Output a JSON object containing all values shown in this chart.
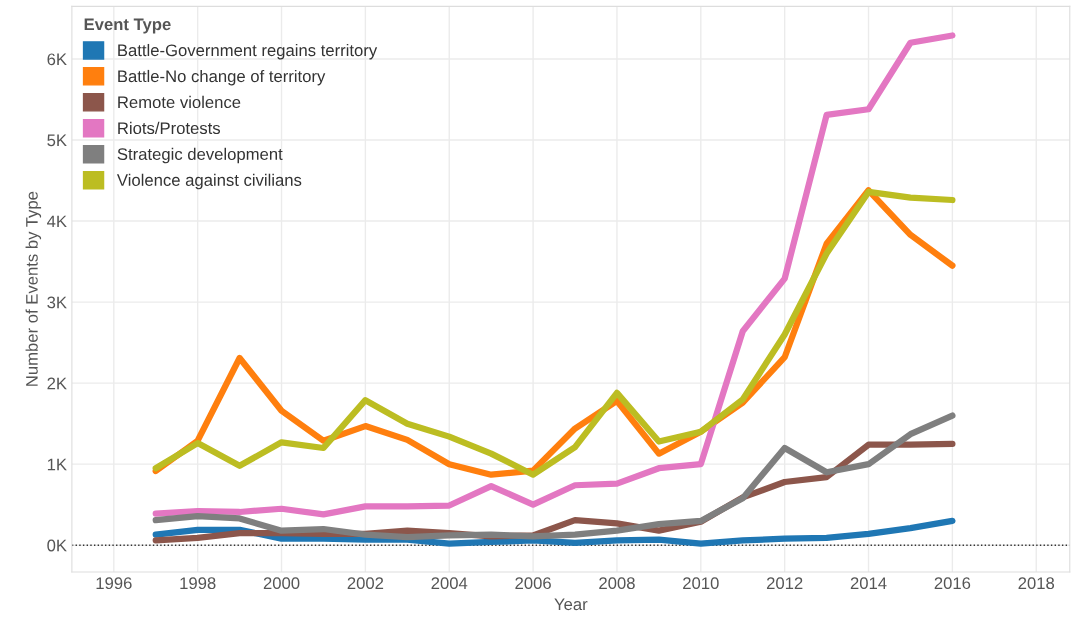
{
  "chart_data": {
    "type": "line",
    "xlabel": "Year",
    "ylabel": "Number of Events by Type",
    "legend_title": "Event Type",
    "x": [
      1997,
      1998,
      1999,
      2000,
      2001,
      2002,
      2003,
      2004,
      2005,
      2006,
      2007,
      2008,
      2009,
      2010,
      2011,
      2012,
      2013,
      2014,
      2015,
      2016
    ],
    "series": [
      {
        "name": "Battle-Government regains territory",
        "color": "#1f77b4",
        "values": [
          130,
          190,
          190,
          80,
          80,
          70,
          70,
          20,
          40,
          60,
          30,
          60,
          70,
          20,
          60,
          80,
          90,
          140,
          210,
          300
        ]
      },
      {
        "name": "Battle-No change of territory",
        "color": "#ff7f0e",
        "values": [
          915,
          1290,
          2310,
          1660,
          1290,
          1470,
          1300,
          1000,
          870,
          920,
          1440,
          1780,
          1130,
          1400,
          1760,
          2320,
          3720,
          4380,
          3830,
          3450
        ]
      },
      {
        "name": "Remote violence",
        "color": "#8c564b",
        "values": [
          60,
          90,
          150,
          150,
          140,
          140,
          180,
          150,
          110,
          120,
          310,
          270,
          180,
          290,
          590,
          780,
          840,
          1240,
          1240,
          1250
        ]
      },
      {
        "name": "Riots/Protests",
        "color": "#e377c2",
        "values": [
          390,
          420,
          410,
          450,
          380,
          480,
          480,
          490,
          730,
          500,
          740,
          760,
          950,
          1000,
          2640,
          3290,
          5310,
          5380,
          6200,
          6290
        ]
      },
      {
        "name": "Strategic development",
        "color": "#7f7f7f",
        "values": [
          310,
          360,
          330,
          180,
          200,
          130,
          100,
          120,
          130,
          110,
          130,
          180,
          260,
          300,
          580,
          1200,
          900,
          1000,
          1370,
          1600
        ]
      },
      {
        "name": "Violence against civilians",
        "color": "#bcbd22",
        "values": [
          950,
          1260,
          980,
          1270,
          1200,
          1790,
          1500,
          1340,
          1130,
          870,
          1210,
          1880,
          1280,
          1400,
          1800,
          2600,
          3600,
          4360,
          4290,
          4260
        ]
      }
    ],
    "xlim": [
      1995,
      2018.8
    ],
    "xticks": [
      1996,
      1998,
      2000,
      2002,
      2004,
      2006,
      2008,
      2010,
      2012,
      2014,
      2016,
      2018
    ],
    "ylim": [
      -330,
      6650
    ],
    "yticks": [
      {
        "value": 0,
        "label": "0K"
      },
      {
        "value": 1000,
        "label": "1K"
      },
      {
        "value": 2000,
        "label": "2K"
      },
      {
        "value": 3000,
        "label": "3K"
      },
      {
        "value": 4000,
        "label": "4K"
      },
      {
        "value": 5000,
        "label": "5K"
      },
      {
        "value": 6000,
        "label": "6K"
      }
    ],
    "ref_lines": [
      {
        "axis": "y",
        "value": 0,
        "label": null,
        "color": "#333333",
        "line_style": "dotted"
      }
    ],
    "grid": true,
    "legend": "top left",
    "marker": "none",
    "line_style": "solid"
  }
}
